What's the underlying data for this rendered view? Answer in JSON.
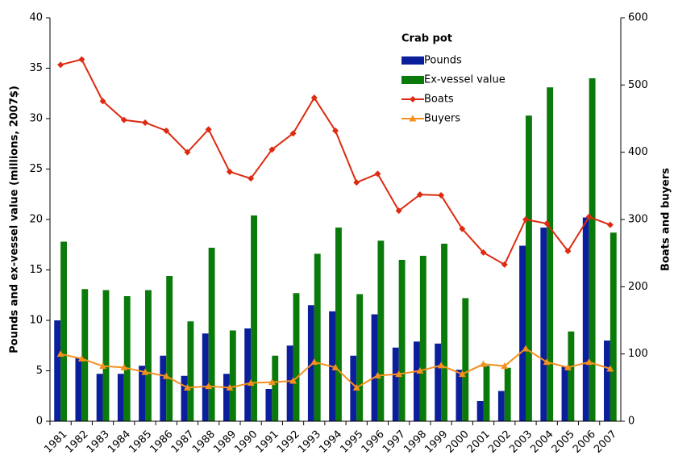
{
  "chart_data": {
    "type": "bar-line",
    "legend_title": "Crab pot",
    "y_label": "Pounds and ex-vessel value (millions, 2007$)",
    "y2_label": "Boats and buyers",
    "categories": [
      "1981",
      "1982",
      "1983",
      "1984",
      "1985",
      "1986",
      "1987",
      "1988",
      "1989",
      "1990",
      "1991",
      "1992",
      "1993",
      "1994",
      "1995",
      "1996",
      "1997",
      "1998",
      "1999",
      "2000",
      "2001",
      "2002",
      "2003",
      "2004",
      "2005",
      "2006",
      "2007"
    ],
    "series": [
      {
        "name": "Pounds",
        "type": "bar",
        "color": "#0b1e9c",
        "values": [
          10.0,
          6.3,
          4.7,
          4.7,
          5.5,
          6.5,
          4.5,
          8.7,
          4.7,
          9.2,
          3.2,
          7.5,
          11.5,
          10.9,
          6.5,
          10.6,
          7.3,
          7.9,
          7.7,
          5.1,
          2.0,
          3.0,
          17.4,
          19.2,
          5.4,
          20.2,
          8.0
        ]
      },
      {
        "name": "Ex-vessel value",
        "type": "bar",
        "color": "#0a7a0a",
        "values": [
          17.8,
          13.1,
          13.0,
          12.4,
          13.0,
          14.4,
          9.9,
          17.2,
          9.0,
          20.4,
          6.5,
          12.7,
          16.6,
          19.2,
          12.6,
          17.9,
          16.0,
          16.4,
          17.6,
          12.2,
          5.5,
          5.3,
          30.3,
          33.1,
          8.9,
          34.0,
          18.7
        ]
      },
      {
        "name": "Boats",
        "type": "line",
        "axis": "y2",
        "marker": "diamond",
        "color": "#dd2a10",
        "values": [
          530,
          538,
          476,
          448,
          444,
          432,
          400,
          434,
          371,
          361,
          404,
          428,
          481,
          432,
          355,
          368,
          313,
          337,
          336,
          286,
          251,
          233,
          300,
          294,
          253,
          304,
          292
        ]
      },
      {
        "name": "Buyers",
        "type": "line",
        "axis": "y2",
        "marker": "triangle",
        "color": "#f5901e",
        "values": [
          100,
          93,
          82,
          80,
          73,
          67,
          50,
          52,
          50,
          57,
          58,
          60,
          88,
          80,
          50,
          68,
          70,
          75,
          83,
          70,
          85,
          82,
          108,
          88,
          80,
          88,
          78
        ]
      }
    ],
    "ylim": [
      0,
      40
    ],
    "yticks": [
      0,
      5,
      10,
      15,
      20,
      25,
      30,
      35,
      40
    ],
    "y2lim": [
      0,
      600
    ],
    "y2ticks": [
      0,
      100,
      200,
      300,
      400,
      500,
      600
    ]
  }
}
